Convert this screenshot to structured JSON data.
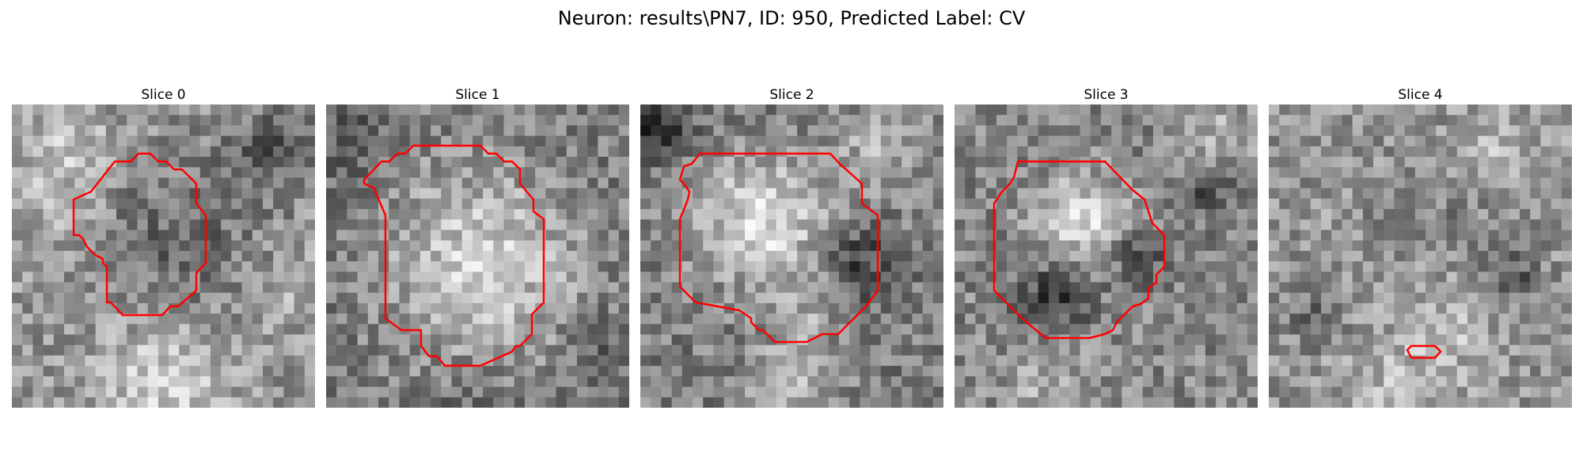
{
  "figure": {
    "suptitle": "Neuron: results\\PN7, ID: 950, Predicted Label: CV",
    "contour_color": "#ff0000",
    "image_colormap": "grayscale"
  },
  "panels": [
    {
      "title": "Slice 0"
    },
    {
      "title": "Slice 1"
    },
    {
      "title": "Slice 2"
    },
    {
      "title": "Slice 3"
    },
    {
      "title": "Slice 4"
    }
  ]
}
